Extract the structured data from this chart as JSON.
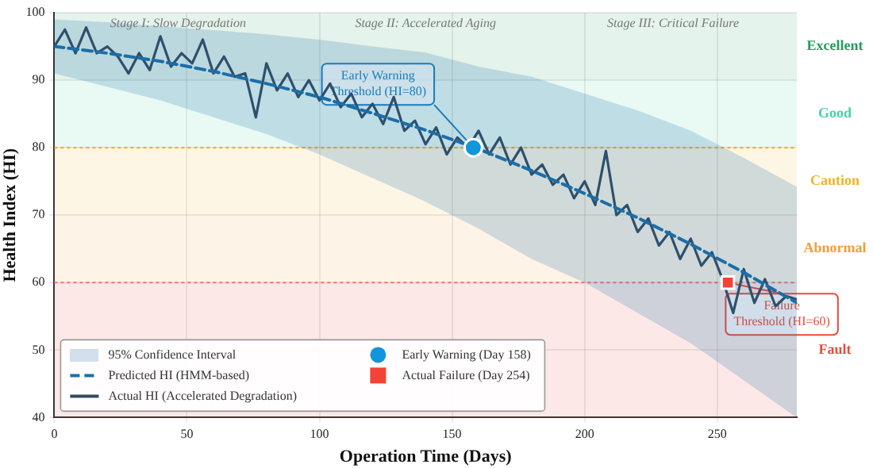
{
  "chart_data": {
    "type": "line",
    "xlabel": "Operation Time (Days)",
    "ylabel": "Health Index (HI)",
    "xlim": [
      0,
      280
    ],
    "xticks": [
      0,
      50,
      100,
      150,
      200,
      250
    ],
    "ylim": [
      40,
      100
    ],
    "yticks": [
      40,
      50,
      60,
      70,
      80,
      90,
      100
    ],
    "grid": true,
    "legend": "bottom left",
    "series": [
      {
        "name": "Predicted HI (HMM-based)",
        "color": "#1b6fa8",
        "line_style": "dashed",
        "marker": "none",
        "x": [
          0,
          20,
          40,
          60,
          80,
          100,
          120,
          140,
          160,
          180,
          200,
          220,
          240,
          260,
          280
        ],
        "values": [
          95,
          94,
          92.8,
          91.3,
          89.5,
          87.5,
          85.1,
          82.6,
          79.8,
          76.6,
          73.2,
          69.6,
          65.7,
          61.5,
          57
        ],
        "lower": [
          91,
          89,
          87,
          84.5,
          82,
          79,
          75.5,
          72,
          68,
          63.5,
          60,
          55.5,
          51,
          45.5,
          40
        ],
        "upper": [
          99,
          98.6,
          98,
          97.4,
          96.8,
          96,
          95,
          94.1,
          92,
          90.5,
          88,
          85.5,
          82.5,
          78.5,
          74.2
        ]
      },
      {
        "name": "Actual HI (Accelerated Degradation)",
        "color": "#34495e",
        "line_style": "solid",
        "marker": "none",
        "x": [
          0,
          4,
          8,
          12,
          16,
          20,
          24,
          28,
          32,
          36,
          40,
          44,
          48,
          52,
          56,
          60,
          64,
          68,
          72,
          76,
          80,
          84,
          88,
          92,
          96,
          100,
          104,
          108,
          112,
          116,
          120,
          124,
          128,
          132,
          136,
          140,
          144,
          148,
          152,
          156,
          160,
          164,
          168,
          172,
          176,
          180,
          184,
          188,
          192,
          196,
          200,
          204,
          208,
          212,
          216,
          220,
          224,
          228,
          232,
          236,
          240,
          244,
          248,
          252,
          256,
          260,
          264,
          268,
          272,
          276,
          280
        ],
        "values": [
          95,
          97.5,
          94,
          97.8,
          94,
          95,
          93.5,
          91,
          94,
          91.5,
          96.5,
          92,
          94,
          92.5,
          96,
          91,
          93.5,
          90.5,
          91,
          84.5,
          92.5,
          88.5,
          91,
          87.5,
          90,
          87,
          89.5,
          86,
          88,
          84.5,
          86.5,
          83.5,
          87.5,
          82.5,
          84,
          80.5,
          83,
          79,
          81.5,
          80,
          82.5,
          79,
          81.5,
          77.5,
          80,
          76,
          77.5,
          74.5,
          76,
          72.5,
          75,
          71.5,
          79.5,
          70,
          71.5,
          67.5,
          69.5,
          65.5,
          67.5,
          63.5,
          66.5,
          62.5,
          64.5,
          60.5,
          55.5,
          62,
          57,
          60.5,
          56.5,
          58,
          57.5
        ]
      },
      {
        "name": "Early Warning (Day 158)",
        "type": "scatter",
        "color": "#1296db",
        "marker": "circle",
        "x": [
          158
        ],
        "values": [
          80
        ]
      },
      {
        "name": "Actual Failure (Day 254)",
        "type": "scatter",
        "color": "#f44336",
        "marker": "square",
        "x": [
          254
        ],
        "values": [
          60
        ]
      }
    ],
    "bands": [
      {
        "axis": "y",
        "from": 90,
        "to": 100,
        "label": "Excellent",
        "color": "#1e9e5e"
      },
      {
        "axis": "y",
        "from": 80,
        "to": 90,
        "label": "Good",
        "color": "#48d1a8"
      },
      {
        "axis": "y",
        "from": 70,
        "to": 80,
        "label": "Caution",
        "color": "#f0b429"
      },
      {
        "axis": "y",
        "from": 60,
        "to": 70,
        "label": "Abnormal",
        "color": "#f39c3c"
      },
      {
        "axis": "y",
        "from": 40,
        "to": 60,
        "label": "Fault",
        "color": "#e74c3c"
      }
    ],
    "ref_lines": [
      {
        "axis": "y",
        "value": 80,
        "color": "#f5a623",
        "line_style": "dotted"
      },
      {
        "axis": "y",
        "value": 60,
        "color": "#ff6b6b",
        "line_style": "dotted"
      }
    ],
    "annotations": [
      "95% Confidence Interval",
      "Stage I: Slow Degradation",
      "Stage II: Accelerated Aging",
      "Stage III: Critical Failure",
      {
        "text": "Early Warning\nThreshold (HI=80)",
        "x": 158,
        "y": 80
      },
      {
        "text": "Failure\nThreshold (HI=60)",
        "x": 254,
        "y": 60
      }
    ]
  }
}
